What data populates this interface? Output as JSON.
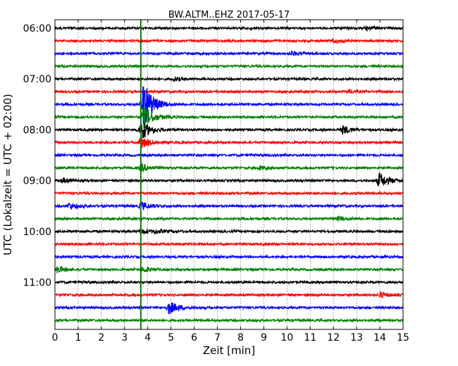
{
  "chart_data": {
    "type": "line",
    "title": "BW.ALTM..EHZ 2017-05-17",
    "xlabel": "Zeit  [min]",
    "ylabel": "UTC (Lokalzeit = UTC + 02:00)",
    "xlim": [
      0,
      15
    ],
    "x_ticks": [
      "0",
      "1",
      "2",
      "3",
      "4",
      "5",
      "6",
      "7",
      "8",
      "9",
      "10",
      "11",
      "12",
      "13",
      "14",
      "15"
    ],
    "y_tick_labels": [
      "06:00",
      "07:00",
      "08:00",
      "09:00",
      "10:00",
      "11:00"
    ],
    "grid": "vertical dotted",
    "trace_colors": [
      "#000000",
      "#ff0000",
      "#0000ff",
      "#008000"
    ],
    "trace_start_times": [
      "06:00",
      "06:15",
      "06:30",
      "06:45",
      "07:00",
      "07:15",
      "07:30",
      "07:45",
      "08:00",
      "08:15",
      "08:30",
      "08:45",
      "09:00",
      "09:15",
      "09:30",
      "09:45",
      "10:00",
      "10:15",
      "10:30",
      "10:45",
      "11:00",
      "11:15",
      "11:30",
      "11:45"
    ],
    "events": [
      {
        "trace": "06:00",
        "minute": 13.4,
        "strength": 0.5
      },
      {
        "trace": "06:15",
        "minute": 12.0,
        "strength": 0.4
      },
      {
        "trace": "06:30",
        "minute": 10.2,
        "strength": 0.4
      },
      {
        "trace": "07:00",
        "minute": 5.1,
        "strength": 0.4
      },
      {
        "trace": "07:15",
        "minute": 12.6,
        "strength": 0.4
      },
      {
        "trace": "07:30",
        "minute": 3.8,
        "strength": 6.0
      },
      {
        "trace": "07:45",
        "minute": 3.8,
        "strength": 3.0
      },
      {
        "trace": "08:00",
        "minute": 3.7,
        "strength": 2.5
      },
      {
        "trace": "08:00",
        "minute": 12.4,
        "strength": 1.0
      },
      {
        "trace": "08:15",
        "minute": 3.7,
        "strength": 1.5
      },
      {
        "trace": "08:45",
        "minute": 3.7,
        "strength": 1.0
      },
      {
        "trace": "08:45",
        "minute": 8.8,
        "strength": 0.4
      },
      {
        "trace": "09:00",
        "minute": 13.95,
        "strength": 2.0
      },
      {
        "trace": "09:00",
        "minute": 0.3,
        "strength": 0.5
      },
      {
        "trace": "09:30",
        "minute": 0.6,
        "strength": 0.8
      },
      {
        "trace": "09:30",
        "minute": 3.7,
        "strength": 1.0
      },
      {
        "trace": "09:45",
        "minute": 12.2,
        "strength": 0.5
      },
      {
        "trace": "10:00",
        "minute": 3.7,
        "strength": 0.6
      },
      {
        "trace": "10:00",
        "minute": 4.3,
        "strength": 0.4
      },
      {
        "trace": "10:45",
        "minute": 0.1,
        "strength": 0.8
      },
      {
        "trace": "10:45",
        "minute": 3.8,
        "strength": 0.6
      },
      {
        "trace": "11:15",
        "minute": 14.0,
        "strength": 0.6
      },
      {
        "trace": "11:30",
        "minute": 4.9,
        "strength": 1.6
      }
    ],
    "vertical_marker": {
      "minute": 3.7,
      "color": "#008000"
    }
  }
}
